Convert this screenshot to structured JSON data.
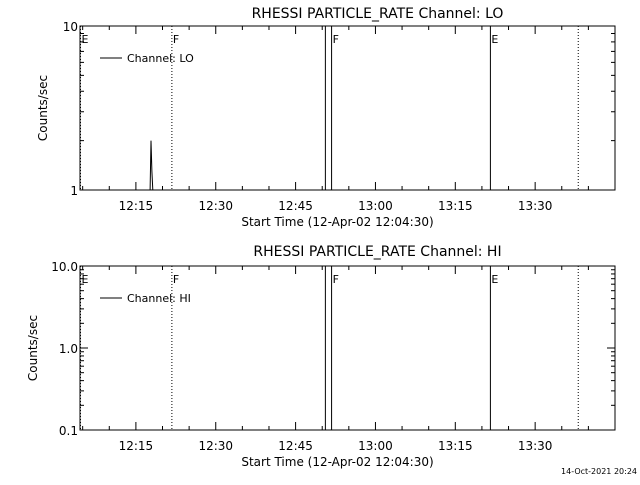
{
  "chart_data": [
    {
      "type": "line",
      "title": "RHESSI PARTICLE_RATE Channel: LO",
      "ylabel": "Counts/sec",
      "xlabel": "Start Time (12-Apr-02 12:04:30)",
      "y_scale": "log",
      "ylim": [
        1,
        10
      ],
      "y_ticks": [
        {
          "value": 1,
          "label": "1"
        },
        {
          "value": 10,
          "label": "10"
        }
      ],
      "xlim": [
        "12:04:30",
        "13:45:00"
      ],
      "x_ticks": [
        "12:15",
        "12:30",
        "12:45",
        "13:00",
        "13:15",
        "13:30"
      ],
      "legend": {
        "label": "Channel: LO",
        "placement": "top-left"
      },
      "series": [
        {
          "name": "Channel: LO",
          "x": [
            "12:17:40",
            "12:17:50",
            "12:18:00",
            "12:18:10"
          ],
          "y": [
            1.0,
            2.0,
            1.3,
            1.0
          ]
        }
      ],
      "event_markers": [
        {
          "time": "12:04:30",
          "label": "E",
          "style": "dotted"
        },
        {
          "time": "12:21:40",
          "label": "F",
          "style": "dotted"
        },
        {
          "time": "12:50:30",
          "label": "",
          "style": "solid"
        },
        {
          "time": "12:51:40",
          "label": "F",
          "style": "solid"
        },
        {
          "time": "13:21:30",
          "label": "E",
          "style": "solid"
        },
        {
          "time": "13:38:00",
          "label": "",
          "style": "dotted"
        }
      ]
    },
    {
      "type": "line",
      "title": "RHESSI PARTICLE_RATE Channel: HI",
      "ylabel": "Counts/sec",
      "xlabel": "Start Time (12-Apr-02 12:04:30)",
      "y_scale": "log",
      "ylim": [
        0.1,
        10
      ],
      "y_ticks": [
        {
          "value": 0.1,
          "label": "0.1"
        },
        {
          "value": 1,
          "label": "1.0"
        },
        {
          "value": 10,
          "label": "10.0"
        }
      ],
      "xlim": [
        "12:04:30",
        "13:45:00"
      ],
      "x_ticks": [
        "12:15",
        "12:30",
        "12:45",
        "13:00",
        "13:15",
        "13:30"
      ],
      "legend": {
        "label": "Channel: HI",
        "placement": "top-left"
      },
      "series": [
        {
          "name": "Channel: HI",
          "x": [],
          "y": []
        }
      ],
      "event_markers": [
        {
          "time": "12:04:30",
          "label": "E",
          "style": "dotted"
        },
        {
          "time": "12:21:40",
          "label": "F",
          "style": "dotted"
        },
        {
          "time": "12:50:30",
          "label": "",
          "style": "solid"
        },
        {
          "time": "12:51:40",
          "label": "F",
          "style": "solid"
        },
        {
          "time": "13:21:30",
          "label": "E",
          "style": "solid"
        },
        {
          "time": "13:38:00",
          "label": "",
          "style": "dotted"
        }
      ]
    }
  ],
  "footer": {
    "timestamp": "14-Oct-2021 20:24"
  }
}
